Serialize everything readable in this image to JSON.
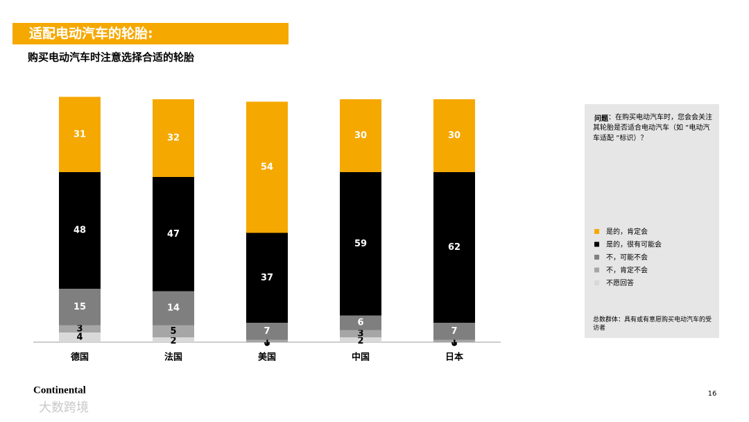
{
  "chart_data": {
    "type": "stacked_bar",
    "title": "适配电动汽车的轮胎:",
    "subtitle": "购买电动汽车时注意选择合适的轮胎",
    "categories": [
      "德国",
      "法国",
      "美国",
      "中国",
      "日本"
    ],
    "series": [
      {
        "name": "是的，肯定会",
        "color": "#f5a800",
        "values": [
          31,
          32,
          54,
          30,
          30
        ]
      },
      {
        "name": "是的，很有可能会",
        "color": "#000000",
        "values": [
          48,
          47,
          37,
          59,
          62
        ]
      },
      {
        "name": "不，可能不会",
        "color": "#7f7f7f",
        "values": [
          15,
          14,
          7,
          6,
          7
        ]
      },
      {
        "name": "不，肯定不会",
        "color": "#a6a6a6",
        "values": [
          3,
          5,
          1,
          3,
          1
        ]
      },
      {
        "name": "不愿回答",
        "color": "#d9d9d9",
        "values": [
          4,
          2,
          0,
          2,
          0
        ]
      }
    ],
    "ylim": [
      0,
      100
    ],
    "question_label": "问题",
    "question": "：在购买电动汽车时，您会会关注其轮胎是否适合电动汽车（如 “电动汽车适配 ”标识）？",
    "base_note": "总数群体：具有或有意愿购买电动汽车的受访者"
  },
  "footer": {
    "logo": "Continental",
    "page": "16",
    "watermark": "大数跨境"
  }
}
